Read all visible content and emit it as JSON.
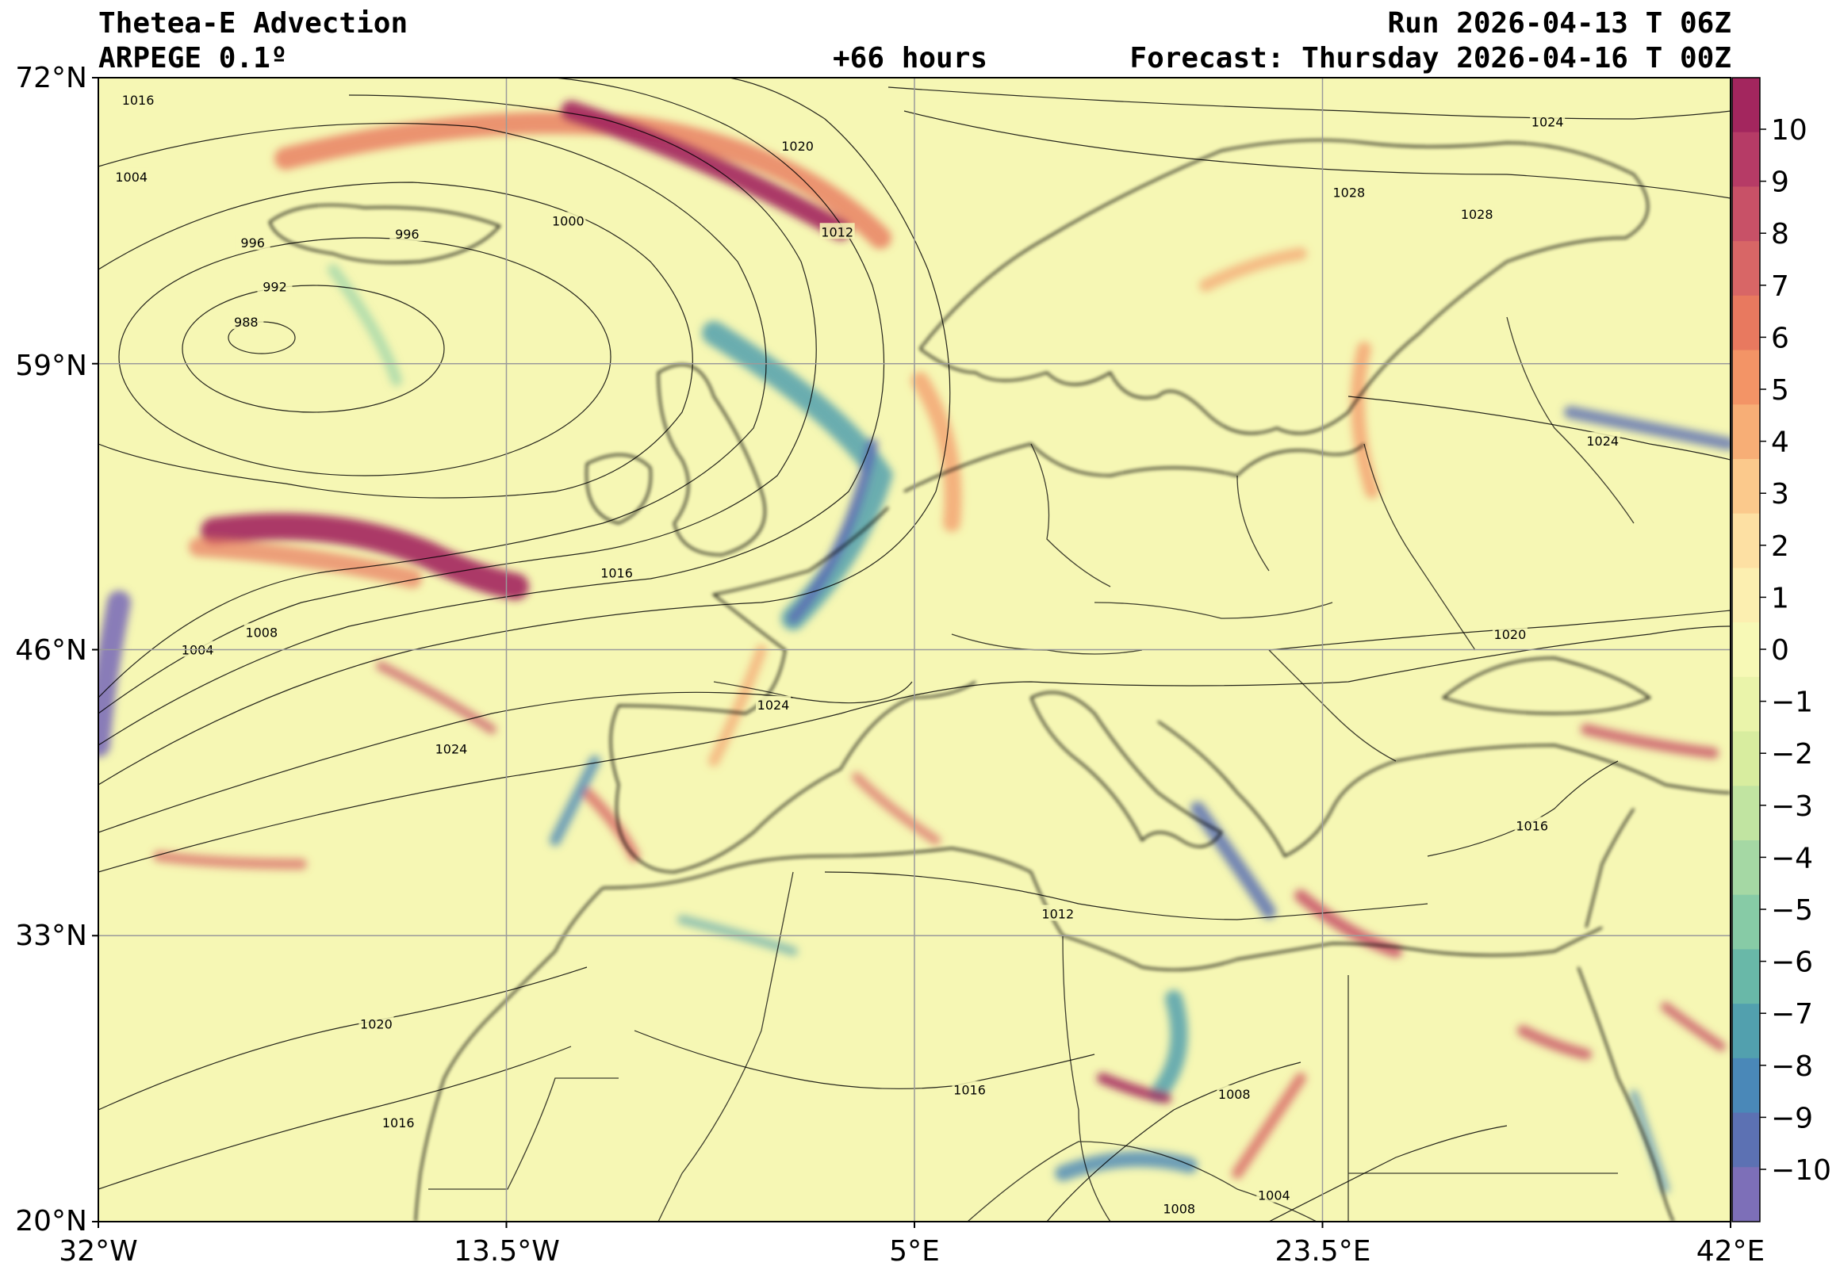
{
  "header": {
    "title": "Thetea-E Advection",
    "model": "ARPEGE 0.1º",
    "run": "Run 2026-04-13 T 06Z",
    "lead": "+66 hours",
    "forecast": "Forecast: Thursday 2026-04-16 T 00Z"
  },
  "map": {
    "lon_range": [
      -32,
      42
    ],
    "lat_range": [
      20,
      72
    ],
    "lat_ticks": [
      "72°N",
      "59°N",
      "46°N",
      "33°N",
      "20°N"
    ],
    "lon_ticks": [
      "32°W",
      "13.5°W",
      "5°E",
      "23.5°E",
      "42°E"
    ],
    "background_color": "#f6f7b4",
    "isobar_labels": [
      {
        "text": "1016",
        "lon": -30.2,
        "lat": 71.0
      },
      {
        "text": "1004",
        "lon": -30.5,
        "lat": 67.5
      },
      {
        "text": "996",
        "lon": -25.0,
        "lat": 64.5
      },
      {
        "text": "996",
        "lon": -18.0,
        "lat": 64.9
      },
      {
        "text": "992",
        "lon": -24.0,
        "lat": 62.5
      },
      {
        "text": "988",
        "lon": -25.3,
        "lat": 60.9
      },
      {
        "text": "1020",
        "lon": -0.3,
        "lat": 68.9
      },
      {
        "text": "1000",
        "lon": -10.7,
        "lat": 65.5
      },
      {
        "text": "1012",
        "lon": 1.5,
        "lat": 65.0
      },
      {
        "text": "1028",
        "lon": 24.7,
        "lat": 66.8
      },
      {
        "text": "1024",
        "lon": 33.7,
        "lat": 70.0
      },
      {
        "text": "1028",
        "lon": 30.5,
        "lat": 65.8
      },
      {
        "text": "1024",
        "lon": 36.2,
        "lat": 55.5
      },
      {
        "text": "1020",
        "lon": 32.0,
        "lat": 46.7
      },
      {
        "text": "1016",
        "lon": -8.5,
        "lat": 49.5
      },
      {
        "text": "1004",
        "lon": -27.5,
        "lat": 46.0
      },
      {
        "text": "1008",
        "lon": -24.6,
        "lat": 46.8
      },
      {
        "text": "1024",
        "lon": -1.4,
        "lat": 43.5
      },
      {
        "text": "1024",
        "lon": -16.0,
        "lat": 41.5
      },
      {
        "text": "1012",
        "lon": 11.5,
        "lat": 34.0
      },
      {
        "text": "1016",
        "lon": 33.0,
        "lat": 38.0
      },
      {
        "text": "1020",
        "lon": -19.4,
        "lat": 29.0
      },
      {
        "text": "1016",
        "lon": -18.4,
        "lat": 24.5
      },
      {
        "text": "1016",
        "lon": 7.5,
        "lat": 26.0
      },
      {
        "text": "1008",
        "lon": 19.5,
        "lat": 25.8
      },
      {
        "text": "1008",
        "lon": 17.0,
        "lat": 20.6
      },
      {
        "text": "1004",
        "lon": 21.3,
        "lat": 21.2
      }
    ]
  },
  "colorbar": {
    "labels": [
      "10",
      "9",
      "8",
      "7",
      "6",
      "5",
      "4",
      "3",
      "2",
      "1",
      "0",
      "−1",
      "−2",
      "−3",
      "−4",
      "−5",
      "−6",
      "−7",
      "−8",
      "−9",
      "−10"
    ],
    "colors": [
      "#a3265e",
      "#b63b66",
      "#c85167",
      "#d86666",
      "#e8795f",
      "#f39466",
      "#f7ae76",
      "#fbc98c",
      "#fde0a3",
      "#fcefb0",
      "#f7f9b6",
      "#eaf4aa",
      "#d8ed9f",
      "#c1e4a1",
      "#a5d8a4",
      "#87cba6",
      "#69b8a8",
      "#52a0ae",
      "#4a88b8",
      "#5c71b3",
      "#7d6fb8"
    ]
  }
}
